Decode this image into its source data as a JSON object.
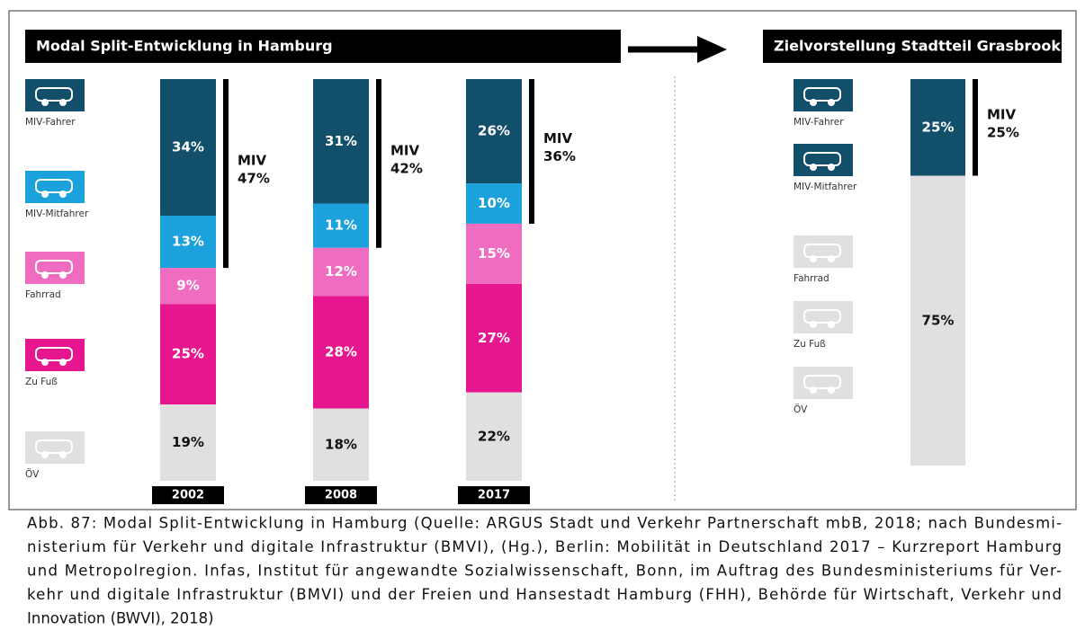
{
  "chart_data": [
    {
      "type": "stacked_bar",
      "title": "Modal Split-Entwicklung in Hamburg",
      "categories": [
        "2002",
        "2008",
        "2017"
      ],
      "series": [
        {
          "name": "MIV-Fahrer",
          "color": "#124f6b",
          "values": [
            34,
            31,
            26
          ],
          "value_labels": [
            "34%",
            "31%",
            "26%"
          ]
        },
        {
          "name": "MIV-Mitfahrer",
          "color": "#1ba1dc",
          "values": [
            13,
            11,
            10
          ],
          "value_labels": [
            "13%",
            "11%",
            "10%"
          ]
        },
        {
          "name": "Fahrrad",
          "color": "#f06cc0",
          "values": [
            9,
            12,
            15
          ],
          "value_labels": [
            "9%",
            "12%",
            "15%"
          ]
        },
        {
          "name": "Zu Fuß",
          "color": "#e6178e",
          "values": [
            25,
            28,
            27
          ],
          "value_labels": [
            "25%",
            "28%",
            "27%"
          ]
        },
        {
          "name": "ÖV",
          "color": "#e0e0e0",
          "values": [
            19,
            18,
            22
          ],
          "value_labels": [
            "19%",
            "18%",
            "22%"
          ]
        }
      ],
      "groups": [
        {
          "label": "MIV",
          "values": [
            47,
            42,
            36
          ],
          "value_labels": [
            "47%",
            "42%",
            "36%"
          ]
        }
      ]
    },
    {
      "type": "stacked_bar",
      "title": "Zielvorstellung Stadtteil Grasbrook",
      "categories": [
        null
      ],
      "series": [
        {
          "color": "#124f6b",
          "values": [
            25
          ],
          "value_labels": [
            "25%"
          ]
        },
        {
          "color": "#e0e0e0",
          "values": [
            75
          ],
          "value_labels": [
            "75%"
          ]
        }
      ],
      "legend": [
        {
          "name": "MIV-Fahrer",
          "color": "#124f6b"
        },
        {
          "name": "MIV-Mitfahrer",
          "color": "#124f6b"
        },
        {
          "name": "Fahrrad",
          "color": "#e0e0e0"
        },
        {
          "name": "Zu Fuß",
          "color": "#e0e0e0"
        },
        {
          "name": "ÖV",
          "color": "#e0e0e0"
        }
      ],
      "groups": [
        {
          "label": "MIV",
          "values": [
            25
          ],
          "value_labels": [
            "25%"
          ]
        }
      ]
    }
  ],
  "caption": [
    "Abb. 87: Modal Split-Entwicklung in Hamburg (Quelle: ARGUS Stadt und Verkehr Partnerschaft mbB, 2018; nach Bundesmi-",
    "nisterium für Verkehr und digitale Infrastruktur (BMVI), (Hg.), Berlin: Mobilität in Deutschland 2017 – Kurzreport Hamburg",
    "und Metropolregion. Infas, Institut für angewandte Sozialwissenschaft, Bonn, im Auftrag des Bundesministeriums für Ver-",
    "kehr und digitale Infrastruktur (BMVI) und der Freien und Hansestadt Hamburg (FHH), Behörde für Wirtschaft, Verkehr und",
    "Innovation (BWVI), 2018)"
  ]
}
